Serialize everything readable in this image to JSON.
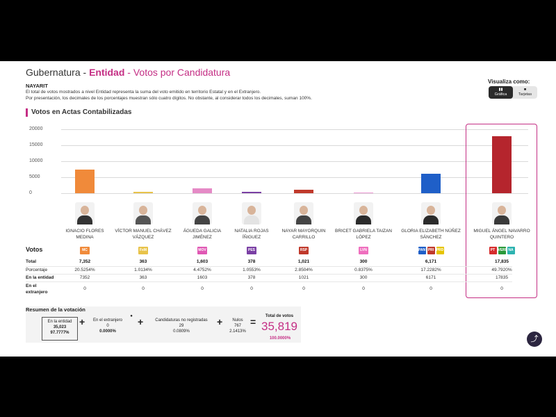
{
  "header": {
    "title_prefix": "Gubernatura - ",
    "title_entity": "Entidad",
    "title_suffix": " - Votos por Candidatura",
    "state": "NAYARIT",
    "note1": "El total de votos mostrados a nivel Entidad representa la suma del voto emitido en territorio Estatal y en el Extranjero.",
    "note2": "Por presentación, los decimales de los porcentajes muestran sólo cuatro dígitos. No obstante, al considerar todos los decimales, suman 100%."
  },
  "viz": {
    "label": "Visualiza como:",
    "options": [
      "Gráfica",
      "Tarjetas"
    ],
    "icons": [
      "chart-icon",
      "cards-icon"
    ],
    "selected": "Gráfica"
  },
  "section_title": "Votos en Actas Contabilizadas",
  "chart_data": {
    "type": "bar",
    "title": "Votos en Actas Contabilizadas",
    "ylim": [
      0,
      20000
    ],
    "yticks": [
      "20000",
      "15000",
      "10000",
      "5000",
      "0"
    ],
    "categories": [
      "IGNACIO FLORES MEDINA",
      "VÍCTOR MANUEL CHÁVEZ VÁZQUEZ",
      "ÁGUEDA GALICIA JIMÉNEZ",
      "NATALIA ROJAS ÍÑIGUEZ",
      "NAYAR MAYORQUIN CARRILLO",
      "BRICET GABRIELA TAIZAN LÓPEZ",
      "GLORIA ELIZABETH NÚÑEZ SÁNCHEZ",
      "MIGUEL ÁNGEL NAVARRO QUINTERO"
    ],
    "values": [
      7352,
      363,
      1603,
      378,
      1021,
      300,
      6171,
      17835
    ],
    "colors": [
      "#f08a3a",
      "#e8c34a",
      "#e58ac6",
      "#7a3fa4",
      "#c0392b",
      "#ef9bd6",
      "#1f5fc8",
      "#b5252d"
    ]
  },
  "candidates": [
    {
      "name_l1": "IGNACIO FLORES",
      "name_l2": "MEDINA",
      "party": "MC",
      "total": "7,352",
      "pct": "20.5254%",
      "entidad": "7352",
      "extranjero": "0"
    },
    {
      "name_l1": "VÍCTOR MANUEL CHÁVEZ",
      "name_l2": "VÁZQUEZ",
      "party": "FxM",
      "total": "363",
      "pct": "1.0134%",
      "entidad": "363",
      "extranjero": "0"
    },
    {
      "name_l1": "ÁGUEDA GALICIA",
      "name_l2": "JIMÉNEZ",
      "party": "MOV",
      "total": "1,603",
      "pct": "4.4752%",
      "entidad": "1603",
      "extranjero": "0"
    },
    {
      "name_l1": "NATALIA ROJAS",
      "name_l2": "ÍÑIGUEZ",
      "party": "PES",
      "total": "378",
      "pct": "1.0553%",
      "entidad": "378",
      "extranjero": "0"
    },
    {
      "name_l1": "NAYAR MAYORQUIN",
      "name_l2": "CARRILLO",
      "party": "RSP",
      "total": "1,021",
      "pct": "2.8504%",
      "entidad": "1021",
      "extranjero": "0"
    },
    {
      "name_l1": "BRICET GABRIELA TAIZAN",
      "name_l2": "LÓPEZ",
      "party": "LVN",
      "total": "300",
      "pct": "0.8375%",
      "entidad": "300",
      "extranjero": "0"
    },
    {
      "name_l1": "GLORIA ELIZABETH NÚÑEZ",
      "name_l2": "SÁNCHEZ",
      "party": "PAN PRI PRD",
      "total": "6,171",
      "pct": "17.2282%",
      "entidad": "6171",
      "extranjero": "0"
    },
    {
      "name_l1": "MIGUEL ÁNGEL NAVARRO",
      "name_l2": "QUINTERO",
      "party": "PT VERDE NA",
      "total": "17,835",
      "pct": "49.7920%",
      "entidad": "17835",
      "extranjero": "0"
    }
  ],
  "rows": {
    "votos": "Votos",
    "total": "Total",
    "pct": "Porcentaje",
    "entidad": "En la entidad",
    "extranjero_l1": "En el",
    "extranjero_l2": "extranjero"
  },
  "summary": {
    "title": "Resumen de la votación",
    "entidad_label": "En la entidad",
    "entidad_votes": "35,023",
    "entidad_pct": "97.7777%",
    "extranjero_label": "En el extranjero",
    "extranjero_votes": "0",
    "extranjero_pct": "0.0000%",
    "no_reg_label": "Candidaturas no registradas",
    "no_reg_votes": "29",
    "no_reg_pct": "0.0809%",
    "nulos_label": "Nulos",
    "nulos_votes": "767",
    "nulos_pct": "2.1413%",
    "total_label": "Total de votos",
    "total_votes": "35,819",
    "total_pct": "100.0000%"
  }
}
